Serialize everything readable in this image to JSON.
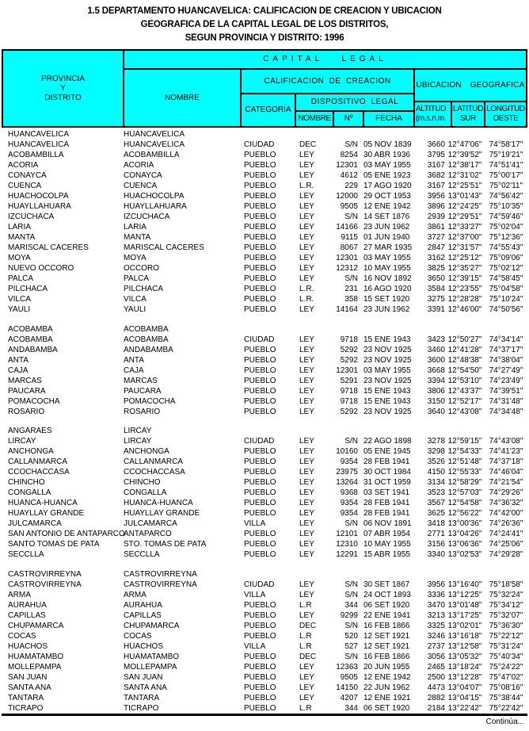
{
  "colors": {
    "header_bg": "#00FFFF",
    "border": "#000000",
    "text": "#000000"
  },
  "title": {
    "line1": "1.5  DEPARTAMENTO HUANCAVELICA: CALIFICACION DE CREACION Y UBICACION",
    "line2": "GEOGRAFICA DE LA CAPITAL LEGAL DE LOS DISTRITOS,",
    "line3": "SEGUN PROVINCIA Y DISTRITO: 1996"
  },
  "table": {
    "header": {
      "provincia_line1": "PROVINCIA",
      "provincia_line2": "Y",
      "provincia_line3": "DISTRITO",
      "capital_legal": "CAPITAL LEGAL",
      "nombre": "NOMBRE",
      "calificacion": "CALIFICACION DE CREACION",
      "categoria": "CATEGORIA",
      "dispositivo": "DISPOSITIVO LEGAL",
      "disp_nombre": "NOMBRE",
      "disp_num": "Nº",
      "disp_fecha": "FECHA",
      "ubicacion": "UBICACION GEOGRAFICA",
      "altitud_line1": "ALTITUD",
      "altitud_line2": "(m.s.n.m.",
      "latitud_line1": "LATITUD",
      "latitud_line2": "SUR",
      "longitud_line1": "LONGITUD",
      "longitud_line2": "OESTE"
    },
    "sections": [
      {
        "province": "HUANCAVELICA",
        "capital": "HUANCAVELICA",
        "rows": [
          {
            "district": "HUANCAVELICA",
            "name": "HUANCAVELICA",
            "category": "CIUDAD",
            "law": "DEC",
            "number": "S/N",
            "date": "05 NOV 1839",
            "altitude": "3660",
            "latitude": "12°47'06\"",
            "longitude": "74°58'17\""
          },
          {
            "district": "ACOBAMBILLA",
            "name": "ACOBAMBILLA",
            "category": "PUEBLO",
            "law": "LEY",
            "number": "8254",
            "date": "30 ABR 1936",
            "altitude": "3795",
            "latitude": "12°39'52\"",
            "longitude": "75°19'21\""
          },
          {
            "district": "ACORIA",
            "name": "ACORIA",
            "category": "PUEBLO",
            "law": "LEY",
            "number": "12301",
            "date": "03 MAY 1955",
            "altitude": "3167",
            "latitude": "12°38'17\"",
            "longitude": "74°51'41\""
          },
          {
            "district": "CONAYCA",
            "name": "CONAYCA",
            "category": "PUEBLO",
            "law": "LEY",
            "number": "4612",
            "date": "05 ENE 1923",
            "altitude": "3682",
            "latitude": "12°31'02\"",
            "longitude": "75°00'17\""
          },
          {
            "district": "CUENCA",
            "name": "CUENCA",
            "category": "PUEBLO",
            "law": "L.R.",
            "number": "229",
            "date": "17 AGO 1920",
            "altitude": "3167",
            "latitude": "12°25'51\"",
            "longitude": "75°02'11\""
          },
          {
            "district": "HUACHOCOLPA",
            "name": "HUACHOCOLPA",
            "category": "PUEBLO",
            "law": "LEY",
            "number": "12000",
            "date": "29 OCT 1953",
            "altitude": "3956",
            "latitude": "13°01'43\"",
            "longitude": "74°56'42\""
          },
          {
            "district": "HUAYLLAHUARA",
            "name": "HUAYLLAHUARA",
            "category": "PUEBLO",
            "law": "LEY",
            "number": "9505",
            "date": "12 ENE 1942",
            "altitude": "3896",
            "latitude": "12°24'25\"",
            "longitude": "75°10'35\""
          },
          {
            "district": "IZCUCHACA",
            "name": "IZCUCHACA",
            "category": "PUEBLO",
            "law": "LEY",
            "number": "S/N",
            "date": "14 SET 1876",
            "altitude": "2939",
            "latitude": "12°29'51\"",
            "longitude": "74°59'46\""
          },
          {
            "district": "LARIA",
            "name": "LARIA",
            "category": "PUEBLO",
            "law": "LEY",
            "number": "14166",
            "date": "23 JUN 1962",
            "altitude": "3861",
            "latitude": "12°33'27\"",
            "longitude": "75°02'04\""
          },
          {
            "district": "MANTA",
            "name": "MANTA",
            "category": "PUEBLO",
            "law": "LEY",
            "number": "9115",
            "date": "01 JUN 1940",
            "altitude": "3727",
            "latitude": "12°37'00\"",
            "longitude": "75°12'36\""
          },
          {
            "district": "MARISCAL CACERES",
            "name": "MARISCAL CACERES",
            "category": "PUEBLO",
            "law": "LEY",
            "number": "8067",
            "date": "27 MAR 1935",
            "altitude": "2847",
            "latitude": "12°31'57\"",
            "longitude": "74°55'43\""
          },
          {
            "district": "MOYA",
            "name": "MOYA",
            "category": "PUEBLO",
            "law": "LEY",
            "number": "12301",
            "date": "03 MAY 1955",
            "altitude": "3162",
            "latitude": "12°25'12\"",
            "longitude": "75°09'06\""
          },
          {
            "district": "NUEVO OCCORO",
            "name": "OCCORO",
            "category": "PUEBLO",
            "law": "LEY",
            "number": "12312",
            "date": "10 MAY 1955",
            "altitude": "3825",
            "latitude": "12°35'27\"",
            "longitude": "75°02'12\""
          },
          {
            "district": "PALCA",
            "name": "PALCA",
            "category": "PUEBLO",
            "law": "LEY",
            "number": "S/N",
            "date": "16 NOV 1892",
            "altitude": "3650",
            "latitude": "12°39'15\"",
            "longitude": "74°58'45\""
          },
          {
            "district": "PILCHACA",
            "name": "PILCHACA",
            "category": "PUEBLO",
            "law": "L.R.",
            "number": "231",
            "date": "16 AGO 1920",
            "altitude": "3584",
            "latitude": "12°23'55\"",
            "longitude": "75°04'58\""
          },
          {
            "district": "VILCA",
            "name": "VILCA",
            "category": "PUEBLO",
            "law": "L.R.",
            "number": "358",
            "date": "15 SET 1920",
            "altitude": "3275",
            "latitude": "12°28'28\"",
            "longitude": "75°10'24\""
          },
          {
            "district": "YAULI",
            "name": "YAULI",
            "category": "PUEBLO",
            "law": "LEY",
            "number": "14164",
            "date": "23 JUN 1962",
            "altitude": "3391",
            "latitude": "12°46'00\"",
            "longitude": "74°50'56\""
          }
        ]
      },
      {
        "province": "ACOBAMBA",
        "capital": "ACOBAMBA",
        "rows": [
          {
            "district": "ACOBAMBA",
            "name": "ACOBAMBA",
            "category": "CIUDAD",
            "law": "LEY",
            "number": "9718",
            "date": "15 ENE 1943",
            "altitude": "3423",
            "latitude": "12°50'27\"",
            "longitude": "74°34'14\""
          },
          {
            "district": "ANDABAMBA",
            "name": "ANDABAMBA",
            "category": "PUEBLO",
            "law": "LEY",
            "number": "5292",
            "date": "23 NOV 1925",
            "altitude": "3460",
            "latitude": "12°41'28\"",
            "longitude": "74°37'17\""
          },
          {
            "district": "ANTA",
            "name": "ANTA",
            "category": "PUEBLO",
            "law": "LEY",
            "number": "5292",
            "date": "23 NOV 1925",
            "altitude": "3600",
            "latitude": "12°48'38\"",
            "longitude": "74°38'04\""
          },
          {
            "district": "CAJA",
            "name": "CAJA",
            "category": "PUEBLO",
            "law": "LEY",
            "number": "12301",
            "date": "03 MAY 1955",
            "altitude": "3668",
            "latitude": "12°54'50\"",
            "longitude": "74°27'49\""
          },
          {
            "district": "MARCAS",
            "name": "MARCAS",
            "category": "PUEBLO",
            "law": "LEY",
            "number": "5291",
            "date": "23 NOV 1925",
            "altitude": "3394",
            "latitude": "12°53'10\"",
            "longitude": "74°23'49\""
          },
          {
            "district": "PAUCARA",
            "name": "PAUCARA",
            "category": "PUEBLO",
            "law": "LEY",
            "number": "9718",
            "date": "15 ENE 1943",
            "altitude": "3806",
            "latitude": "12°43'37\"",
            "longitude": "74°39'51\""
          },
          {
            "district": "POMACOCHA",
            "name": "POMACOCHA",
            "category": "PUEBLO",
            "law": "LEY",
            "number": "9718",
            "date": "15 ENE 1943",
            "altitude": "3150",
            "latitude": "12°52'17\"",
            "longitude": "74°31'48\""
          },
          {
            "district": "ROSARIO",
            "name": "ROSARIO",
            "category": "PUEBLO",
            "law": "LEY",
            "number": "5292",
            "date": "23 NOV 1925",
            "altitude": "3640",
            "latitude": "12°43'08\"",
            "longitude": "74°34'48\""
          }
        ]
      },
      {
        "province": "ANGARAES",
        "capital": "LIRCAY",
        "rows": [
          {
            "district": "LIRCAY",
            "name": "LIRCAY",
            "category": "CIUDAD",
            "law": "LEY",
            "number": "S/N",
            "date": "22 AGO 1898",
            "altitude": "3278",
            "latitude": "12°59'15\"",
            "longitude": "74°43'08\""
          },
          {
            "district": "ANCHONGA",
            "name": "ANCHONGA",
            "category": "PUEBLO",
            "law": "LEY",
            "number": "10160",
            "date": "05 ENE 1945",
            "altitude": "3298",
            "latitude": "12°54'33\"",
            "longitude": "74°41'23\""
          },
          {
            "district": "CALLANMARCA",
            "name": "CALLANMARCA",
            "category": "PUEBLO",
            "law": "LEY",
            "number": "9354",
            "date": "28 FEB 1941",
            "altitude": "3526",
            "latitude": "12°51'48\"",
            "longitude": "74°37'18\""
          },
          {
            "district": "CCOCHACCASA",
            "name": "CCOCHACCASA",
            "category": "PUEBLO",
            "law": "LEY",
            "number": "23975",
            "date": "30 OCT 1984",
            "altitude": "4150",
            "latitude": "12°55'33\"",
            "longitude": "74°46'04\""
          },
          {
            "district": "CHINCHO",
            "name": "CHINCHO",
            "category": "PUEBLO",
            "law": "LEY",
            "number": "13264",
            "date": "31 OCT 1959",
            "altitude": "3134",
            "latitude": "12°58'29\"",
            "longitude": "74°21'54\""
          },
          {
            "district": "CONGALLA",
            "name": "CONGALLA",
            "category": "PUEBLO",
            "law": "LEY",
            "number": "9368",
            "date": "03 SET 1941",
            "altitude": "3523",
            "latitude": "12°57'03\"",
            "longitude": "74°29'26\""
          },
          {
            "district": "HUANCA-HUANCA",
            "name": "HUANCA-HUANCA",
            "category": "PUEBLO",
            "law": "LEY",
            "number": "9354",
            "date": "28 FEB 1941",
            "altitude": "3567",
            "latitude": "12°54'58\"",
            "longitude": "74°36'32\""
          },
          {
            "district": "HUAYLLAY GRANDE",
            "name": "HUAYLLAY GRANDE",
            "category": "PUEBLO",
            "law": "LEY",
            "number": "9354",
            "date": "28 FEB 1941",
            "altitude": "3625",
            "latitude": "12°56'22\"",
            "longitude": "74°42'00\""
          },
          {
            "district": "JULCAMARCA",
            "name": "JULCAMARCA",
            "category": "VILLA",
            "law": "LEY",
            "number": "S/N",
            "date": "06 NOV 1891",
            "altitude": "3418",
            "latitude": "13°00'36\"",
            "longitude": "74°26'36\""
          },
          {
            "district": "SAN ANTONIO DE ANTAPARCO",
            "name": "ANTAPARCO",
            "category": "PUEBLO",
            "law": "LEY",
            "number": "12101",
            "date": "07 ABR 1954",
            "altitude": "2771",
            "latitude": "13°04'26\"",
            "longitude": "74°24'41\""
          },
          {
            "district": "SANTO TOMAS DE PATA",
            "name": "STO. TOMAS DE PATA",
            "category": "PUEBLO",
            "law": "LEY",
            "number": "12310",
            "date": "10 MAY 1955",
            "altitude": "3156",
            "latitude": "13°06'36\"",
            "longitude": "74°25'06\""
          },
          {
            "district": "SECCLLA",
            "name": "SECCLLA",
            "category": "PUEBLO",
            "law": "LEY",
            "number": "12291",
            "date": "15 ABR 1955",
            "altitude": "3340",
            "latitude": "13°02'53\"",
            "longitude": "74°29'28\""
          }
        ]
      },
      {
        "province": "CASTROVIRREYNA",
        "capital": "CASTROVIRREYNA",
        "rows": [
          {
            "district": "CASTROVIRREYNA",
            "name": "CASTROVIRREYNA",
            "category": "CIUDAD",
            "law": "LEY",
            "number": "S/N",
            "date": "30 SET 1867",
            "altitude": "3956",
            "latitude": "13°16'40\"",
            "longitude": "75°18'58\""
          },
          {
            "district": "ARMA",
            "name": "ARMA",
            "category": "VILLA",
            "law": "LEY",
            "number": "S/N",
            "date": "24 OCT 1893",
            "altitude": "3336",
            "latitude": "13°12'25\"",
            "longitude": "75°32'24\""
          },
          {
            "district": "AURAHUA",
            "name": "AURAHUA",
            "category": "PUEBLO",
            "law": "L.R",
            "number": "344",
            "date": "06 SET 1920",
            "altitude": "3470",
            "latitude": "13°01'48\"",
            "longitude": "75°34'12\""
          },
          {
            "district": "CAPILLAS",
            "name": "CAPILLAS",
            "category": "PUEBLO",
            "law": "LEY",
            "number": "9299",
            "date": "22 ENE 1941",
            "altitude": "3213",
            "latitude": "13°17'25\"",
            "longitude": "75°32'07\""
          },
          {
            "district": "CHUPAMARCA",
            "name": "CHUPAMARCA",
            "category": "PUEBLO",
            "law": "DEC",
            "number": "S/N",
            "date": "16 FEB 1866",
            "altitude": "3325",
            "latitude": "13°02'01\"",
            "longitude": "75°36'30\""
          },
          {
            "district": "COCAS",
            "name": "COCAS",
            "category": "PUEBLO",
            "law": "L.R",
            "number": "520",
            "date": "12 SET 1921",
            "altitude": "3246",
            "latitude": "13°16'18\"",
            "longitude": "75°22'12\""
          },
          {
            "district": "HUACHOS",
            "name": "HUACHOS",
            "category": "VILLA",
            "law": "L.R",
            "number": "527",
            "date": "12 SET 1921",
            "altitude": "2737",
            "latitude": "13°12'58\"",
            "longitude": "75°31'24\""
          },
          {
            "district": "HUAMATAMBO",
            "name": "HUAMATAMBO",
            "category": "PUEBLO",
            "law": "DEC",
            "number": "S/N",
            "date": "16 FEB 1866",
            "altitude": "3056",
            "latitude": "13°05'32\"",
            "longitude": "75°40'34\""
          },
          {
            "district": "MOLLEPAMPA",
            "name": "MOLLEPAMPA",
            "category": "PUEBLO",
            "law": "LEY",
            "number": "12363",
            "date": "20 JUN 1955",
            "altitude": "2465",
            "latitude": "13°18'24\"",
            "longitude": "75°24'22\""
          },
          {
            "district": "SAN JUAN",
            "name": "SAN JUAN",
            "category": "PUEBLO",
            "law": "LEY",
            "number": "9505",
            "date": "12 ENE 1942",
            "altitude": "2500",
            "latitude": "13°12'28\"",
            "longitude": "75°47'02\""
          },
          {
            "district": "SANTA ANA",
            "name": "SANTA ANA",
            "category": "PUEBLO",
            "law": "LEY",
            "number": "14150",
            "date": "22 JUN 1962",
            "altitude": "4473",
            "latitude": "13°04'07\"",
            "longitude": "75°08'16\""
          },
          {
            "district": "TANTARA",
            "name": "TANTARA",
            "category": "PUEBLO",
            "law": "LEY",
            "number": "4207",
            "date": "12 ENE 1921",
            "altitude": "2882",
            "latitude": "13°04'15\"",
            "longitude": "75°38'44\""
          },
          {
            "district": "TICRAPO",
            "name": "TICRAPO",
            "category": "PUEBLO",
            "law": "L.R",
            "number": "344",
            "date": "06 SET 1920",
            "altitude": "2184",
            "latitude": "13°22'42\"",
            "longitude": "75°22'42\""
          }
        ]
      }
    ]
  },
  "footer": {
    "continua": "Continúa..."
  }
}
